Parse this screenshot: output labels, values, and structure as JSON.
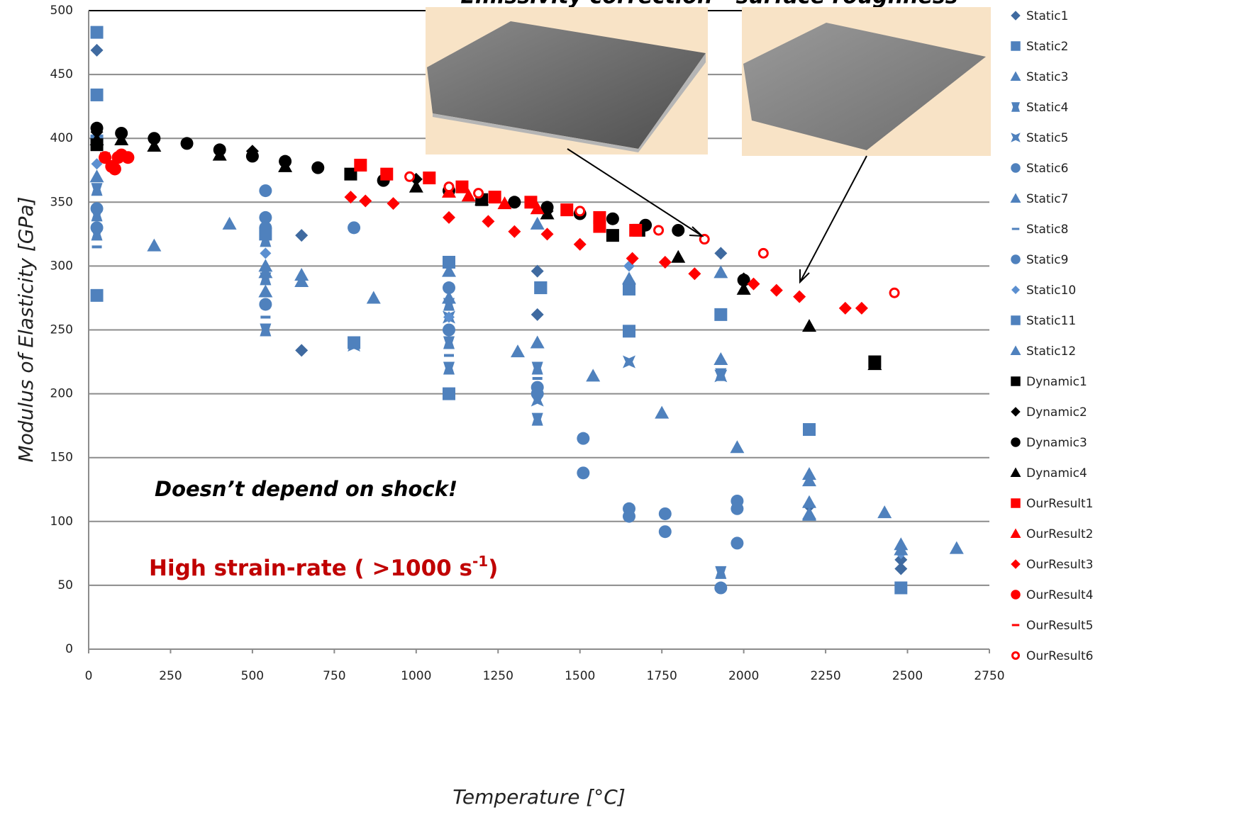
{
  "chart_data": {
    "type": "scatter",
    "title": "Emissivity correction - surface roughness",
    "x_label": "Temperature [°C]",
    "y_label": "Modulus of Elasticity [GPa]",
    "annotations": {
      "shock": "Doesn’t depend on shock!",
      "strain_main": "High strain-rate ( >1000 s",
      "strain_sup": "-1",
      "strain_end": ")"
    },
    "xlim": [
      0,
      2750
    ],
    "xticks": [
      0,
      250,
      500,
      750,
      1000,
      1250,
      1500,
      1750,
      2000,
      2250,
      2500,
      2750
    ],
    "ylim": [
      0,
      500
    ],
    "yticks": [
      0,
      50,
      100,
      150,
      200,
      250,
      300,
      350,
      400,
      450,
      500
    ],
    "grid": true,
    "legend": "right",
    "series": [
      {
        "name": "Static1",
        "color": "#3f6aa0",
        "marker": "diamond",
        "x": [
          25,
          650,
          650,
          1370,
          1370,
          1930,
          2200,
          2480,
          2480
        ],
        "values": [
          469,
          324,
          234,
          296,
          262,
          310,
          112,
          63,
          70
        ]
      },
      {
        "name": "Static2",
        "color": "#4f81bd",
        "marker": "square",
        "x": [
          25,
          25,
          25,
          25,
          1100,
          1380,
          1650,
          1650,
          2200
        ],
        "values": [
          483,
          434,
          398,
          277,
          303,
          283,
          282,
          249,
          172
        ]
      },
      {
        "name": "Static3",
        "color": "#4f81bd",
        "marker": "triangle",
        "x": [
          200,
          430,
          650,
          870,
          1100,
          1310,
          1370,
          1750,
          1930,
          1930,
          1980,
          2200,
          2200,
          2430,
          2480,
          2650
        ],
        "values": [
          316,
          333,
          293,
          275,
          296,
          233,
          240,
          185,
          295,
          227,
          158,
          137,
          106,
          107,
          82,
          79
        ]
      },
      {
        "name": "Static4",
        "color": "#4f81bd",
        "marker": "bowtie",
        "x": [
          25,
          25,
          25,
          540,
          540,
          540,
          1100,
          1100,
          1100,
          1370,
          1370,
          1930,
          1930
        ],
        "values": [
          360,
          340,
          325,
          320,
          290,
          250,
          270,
          240,
          220,
          220,
          180,
          60,
          215
        ]
      },
      {
        "name": "Static5",
        "color": "#4f81bd",
        "marker": "star",
        "x": [
          810,
          1100,
          1370,
          1650,
          1930
        ],
        "values": [
          238,
          260,
          195,
          225,
          214
        ]
      },
      {
        "name": "Static6",
        "color": "#4f81bd",
        "marker": "circle",
        "x": [
          540,
          540,
          540,
          810,
          1100,
          1370,
          1510,
          1510,
          1650,
          1650,
          1760,
          1760,
          1980,
          1980,
          1980,
          1930
        ],
        "values": [
          359,
          338,
          330,
          330,
          283,
          205,
          165,
          138,
          110,
          104,
          106,
          92,
          116,
          110,
          83,
          48
        ]
      },
      {
        "name": "Static7",
        "color": "#4f81bd",
        "marker": "triangle",
        "x": [
          540,
          540,
          1370,
          1540,
          2200
        ],
        "values": [
          300,
          280,
          333,
          214,
          132
        ]
      },
      {
        "name": "Static8",
        "color": "#4f81bd",
        "marker": "dash",
        "x": [
          25,
          25,
          540,
          1100,
          1370
        ],
        "values": [
          315,
          330,
          260,
          230,
          212
        ]
      },
      {
        "name": "Static9",
        "color": "#4f81bd",
        "marker": "circle",
        "x": [
          25,
          25,
          540,
          1100,
          1370
        ],
        "values": [
          345,
          330,
          270,
          250,
          200
        ]
      },
      {
        "name": "Static10",
        "color": "#5b8fd0",
        "marker": "diamond-small",
        "x": [
          25,
          540,
          1100,
          1650,
          1650,
          2480
        ],
        "values": [
          380,
          310,
          260,
          300,
          288,
          75
        ]
      },
      {
        "name": "Static11",
        "color": "#4f81bd",
        "marker": "square",
        "x": [
          540,
          810,
          1100,
          1380,
          1650,
          1930,
          2480
        ],
        "values": [
          325,
          240,
          200,
          283,
          282,
          262,
          48
        ]
      },
      {
        "name": "Static12",
        "color": "#4f81bd",
        "marker": "triangle",
        "x": [
          25,
          540,
          650,
          1100,
          1650,
          2200,
          2200,
          2480
        ],
        "values": [
          370,
          295,
          288,
          275,
          290,
          115,
          105,
          78
        ]
      },
      {
        "name": "Dynamic1",
        "color": "#000000",
        "marker": "square",
        "x": [
          25,
          800,
          1200,
          1600,
          1680,
          2400
        ],
        "values": [
          395,
          372,
          352,
          324,
          328,
          225
        ]
      },
      {
        "name": "Dynamic2",
        "color": "#000000",
        "marker": "diamond",
        "x": [
          25,
          500,
          1000,
          1400,
          2000
        ],
        "values": [
          405,
          390,
          368,
          343,
          290
        ]
      },
      {
        "name": "Dynamic3",
        "color": "#000000",
        "marker": "circle",
        "x": [
          25,
          100,
          200,
          300,
          400,
          500,
          600,
          700,
          900,
          1100,
          1300,
          1400,
          1500,
          1600,
          1700,
          1800,
          2000
        ],
        "values": [
          408,
          404,
          400,
          396,
          391,
          386,
          382,
          377,
          367,
          359,
          350,
          346,
          341,
          337,
          332,
          328,
          289
        ]
      },
      {
        "name": "Dynamic4",
        "color": "#000000",
        "marker": "triangle",
        "x": [
          25,
          100,
          200,
          400,
          600,
          1000,
          1200,
          1400,
          1800,
          2000,
          2200,
          2400
        ],
        "values": [
          399,
          399,
          394,
          387,
          378,
          362,
          352,
          341,
          307,
          282,
          253,
          223
        ]
      },
      {
        "name": "OurResult1",
        "color": "#ff0000",
        "marker": "square",
        "x": [
          830,
          910,
          1040,
          1140,
          1240,
          1350,
          1460,
          1560,
          1560,
          1670
        ],
        "values": [
          379,
          372,
          369,
          362,
          354,
          350,
          344,
          338,
          331,
          328
        ]
      },
      {
        "name": "OurResult2",
        "color": "#ff0000",
        "marker": "triangle",
        "x": [
          1100,
          1160,
          1270,
          1370
        ],
        "values": [
          358,
          355,
          349,
          345
        ]
      },
      {
        "name": "OurResult3",
        "color": "#ff0000",
        "marker": "diamond",
        "x": [
          800,
          845,
          930,
          1100,
          1220,
          1300,
          1400,
          1500,
          1660,
          1760,
          1850,
          2030,
          2100,
          2170,
          2310,
          2360
        ],
        "values": [
          354,
          351,
          349,
          338,
          335,
          327,
          325,
          317,
          306,
          303,
          294,
          286,
          281,
          276,
          267,
          267
        ]
      },
      {
        "name": "OurResult4",
        "color": "#ff0000",
        "marker": "circle",
        "x": [
          50,
          70,
          80,
          90,
          100,
          120
        ],
        "values": [
          385,
          378,
          376,
          385,
          387,
          385
        ]
      },
      {
        "name": "OurResult5",
        "color": "#ff0000",
        "marker": "dash",
        "x": [
          50
        ],
        "values": [
          388
        ]
      },
      {
        "name": "OurResult6",
        "color": "#ff0000",
        "marker": "open-circle",
        "x": [
          980,
          1100,
          1190,
          1500,
          1740,
          1880,
          2060,
          2460
        ],
        "values": [
          370,
          362,
          357,
          343,
          328,
          321,
          310,
          279
        ]
      }
    ]
  }
}
